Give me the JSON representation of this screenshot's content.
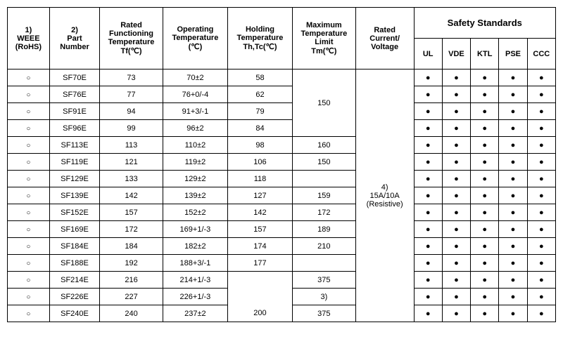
{
  "headers": {
    "weee_sup": "1)",
    "weee_l1": "WEEE",
    "weee_l2": "(RoHS)",
    "part_sup": "2)",
    "part_l1": "Part",
    "part_l2": "Number",
    "tf_l1": "Rated",
    "tf_l2": "Functioning",
    "tf_l3": "Temperature",
    "tf_l4": "Tf(℃)",
    "op_l1": "Operating",
    "op_l2": "Temperature",
    "op_l3": "(℃)",
    "hold_l1": "Holding",
    "hold_l2": "Temperature",
    "hold_l3": "Th,Tc(℃)",
    "tm_l1": "Maximum",
    "tm_l2": "Temperature",
    "tm_l3": "Limit",
    "tm_l4": "Tm(℃)",
    "rated_l1": "Rated",
    "rated_l2": "Current/",
    "rated_l3": "Voltage",
    "safety": "Safety Standards",
    "std": [
      "UL",
      "VDE",
      "KTL",
      "PSE",
      "CCC"
    ]
  },
  "rated_note_sup": "4)",
  "rated_note_l1": "15A/10A",
  "rated_note_l2": "(Resistive)",
  "rows": [
    {
      "part": "SF70E",
      "tf": "73",
      "op": "70±2",
      "hold": "58"
    },
    {
      "part": "SF76E",
      "tf": "77",
      "op": "76+0/-4",
      "hold": "62"
    },
    {
      "part": "SF91E",
      "tf": "94",
      "op": "91+3/-1",
      "hold": "79"
    },
    {
      "part": "SF96E",
      "tf": "99",
      "op": "96±2",
      "hold": "84"
    },
    {
      "part": "SF113E",
      "tf": "113",
      "op": "110±2",
      "hold": "98"
    },
    {
      "part": "SF119E",
      "tf": "121",
      "op": "119±2",
      "hold": "106"
    },
    {
      "part": "SF129E",
      "tf": "133",
      "op": "129±2",
      "hold": "118"
    },
    {
      "part": "SF139E",
      "tf": "142",
      "op": "139±2",
      "hold": "127"
    },
    {
      "part": "SF152E",
      "tf": "157",
      "op": "152±2",
      "hold": "142"
    },
    {
      "part": "SF169E",
      "tf": "172",
      "op": "169+1/-3",
      "hold": "157"
    },
    {
      "part": "SF184E",
      "tf": "184",
      "op": "182±2",
      "hold": "174"
    },
    {
      "part": "SF188E",
      "tf": "192",
      "op": "188+3/-1",
      "hold": "177"
    },
    {
      "part": "SF214E",
      "tf": "216",
      "op": "214+1/-3",
      "hold": ""
    },
    {
      "part": "SF226E",
      "tf": "227",
      "op": "226+1/-3",
      "hold": ""
    },
    {
      "part": "SF240E",
      "tf": "240",
      "op": "237±2",
      "hold": "200"
    }
  ],
  "tm_groups": [
    {
      "span": 4,
      "val": "150",
      "pad_top": 0
    },
    {
      "span": 1,
      "val": "160"
    },
    {
      "span": 1,
      "val": "150"
    },
    {
      "span": 1,
      "val": ""
    },
    {
      "span": 1,
      "val": "159"
    },
    {
      "span": 1,
      "val": "172"
    },
    {
      "span": 1,
      "val": "189"
    },
    {
      "span": 1,
      "val": "210"
    },
    {
      "span": 1,
      "val": ""
    },
    {
      "span": 1,
      "val": "375"
    },
    {
      "span": 1,
      "val": "3)"
    },
    {
      "span": 1,
      "val": "375"
    }
  ]
}
